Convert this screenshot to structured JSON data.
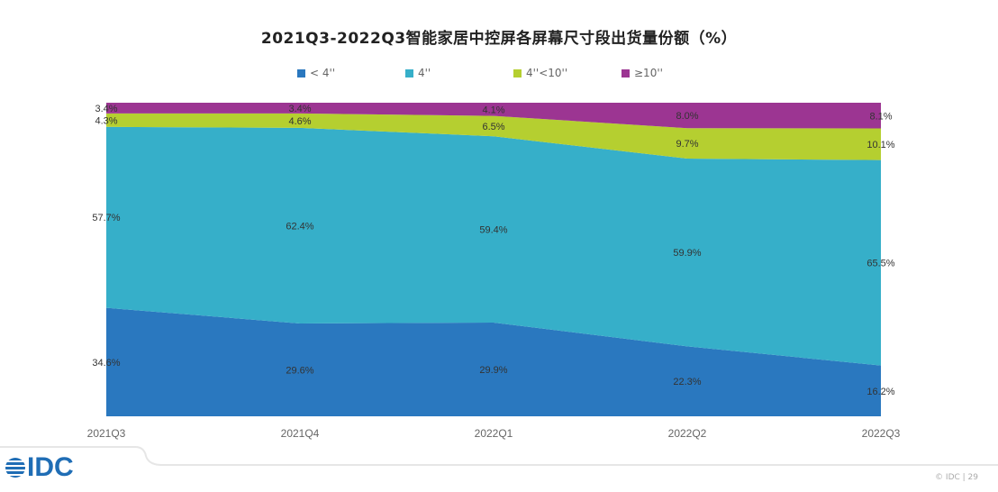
{
  "chart_data": {
    "type": "area",
    "stacked": true,
    "title": "2021Q3-2022Q3智能家居中控屏各屏幕尺寸段出货量份额（%）",
    "categories": [
      "2021Q3",
      "2021Q4",
      "2022Q1",
      "2022Q2",
      "2022Q3"
    ],
    "ylim": [
      0,
      100
    ],
    "grid": false,
    "legend_position": "top",
    "series": [
      {
        "name": "< 4''",
        "color": "#2a78bf",
        "values": [
          34.6,
          29.6,
          29.9,
          22.3,
          16.2
        ],
        "labels": [
          "34.6%",
          "29.6%",
          "29.9%",
          "22.3%",
          "16.2%"
        ]
      },
      {
        "name": "4''",
        "color": "#36afc9",
        "values": [
          57.7,
          62.4,
          59.4,
          59.9,
          65.5
        ],
        "labels": [
          "57.7%",
          "62.4%",
          "59.4%",
          "59.9%",
          "65.5%"
        ]
      },
      {
        "name": "4''<10''",
        "color": "#b5cf30",
        "values": [
          4.3,
          4.6,
          6.5,
          9.7,
          10.1
        ],
        "labels": [
          "4.3%",
          "4.6%",
          "6.5%",
          "9.7%",
          "10.1%"
        ]
      },
      {
        "name": "≥10''",
        "color": "#9c3592",
        "values": [
          3.4,
          3.4,
          4.1,
          8.0,
          8.1
        ],
        "labels": [
          "3.4%",
          "3.4%",
          "4.1%",
          "8.0%",
          "8.1%"
        ]
      }
    ]
  },
  "footer": {
    "logo": "IDC",
    "copyright": "© IDC | 29"
  }
}
